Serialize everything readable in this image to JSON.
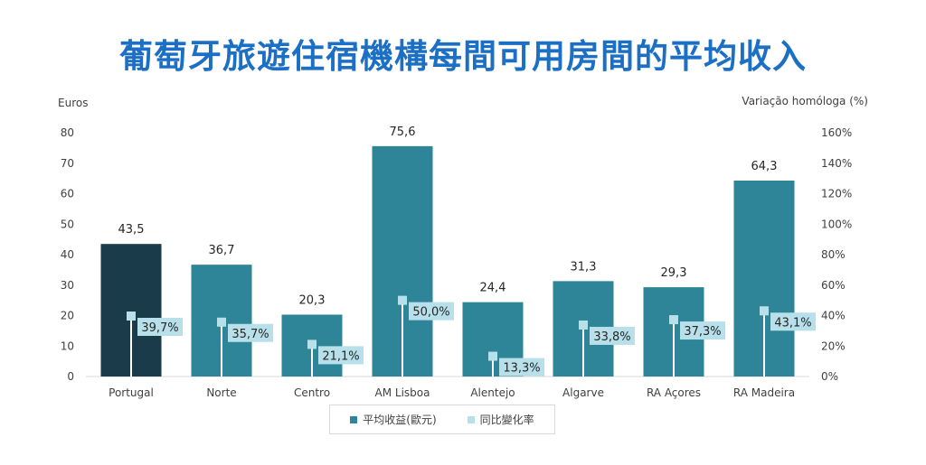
{
  "title": "葡萄牙旅遊住宿機構每間可用房間的平均收入",
  "colors": {
    "title": "#1b6fc4",
    "bar": "#2e8597",
    "bar_highlight": "#1a3c4a",
    "marker": "#b8e0ea",
    "axis_text": "#404040",
    "grid": "#d9d9d9"
  },
  "chart_data": {
    "type": "bar",
    "categories": [
      "Portugal",
      "Norte",
      "Centro",
      "AM Lisboa",
      "Alentejo",
      "Algarve",
      "RA Açores",
      "RA Madeira"
    ],
    "highlight_index": 0,
    "series": [
      {
        "name": "平均收益(歐元)",
        "axis": "left",
        "values": [
          43.5,
          36.7,
          20.3,
          75.6,
          24.4,
          31.3,
          29.3,
          64.3
        ],
        "labels": [
          "43,5",
          "36,7",
          "20,3",
          "75,6",
          "24,4",
          "31,3",
          "29,3",
          "64,3"
        ]
      },
      {
        "name": "同比變化率",
        "axis": "right",
        "style": "marker",
        "values": [
          39.7,
          35.7,
          21.1,
          50.0,
          13.3,
          33.8,
          37.3,
          43.1
        ],
        "labels": [
          "39,7%",
          "35,7%",
          "21,1%",
          "50,0%",
          "13,3%",
          "33,8%",
          "37,3%",
          "43,1%"
        ]
      }
    ],
    "ylabel": "Euros",
    "y2label": "Variação homóloga (%)",
    "ylim": [
      0,
      80
    ],
    "y2lim": [
      0,
      160
    ],
    "yticks": [
      "0",
      "10",
      "20",
      "30",
      "40",
      "50",
      "60",
      "70",
      "80"
    ],
    "y2ticks": [
      "0%",
      "20%",
      "40%",
      "60%",
      "80%",
      "100%",
      "120%",
      "140%",
      "160%"
    ],
    "grid": false,
    "legend": "bottom"
  }
}
